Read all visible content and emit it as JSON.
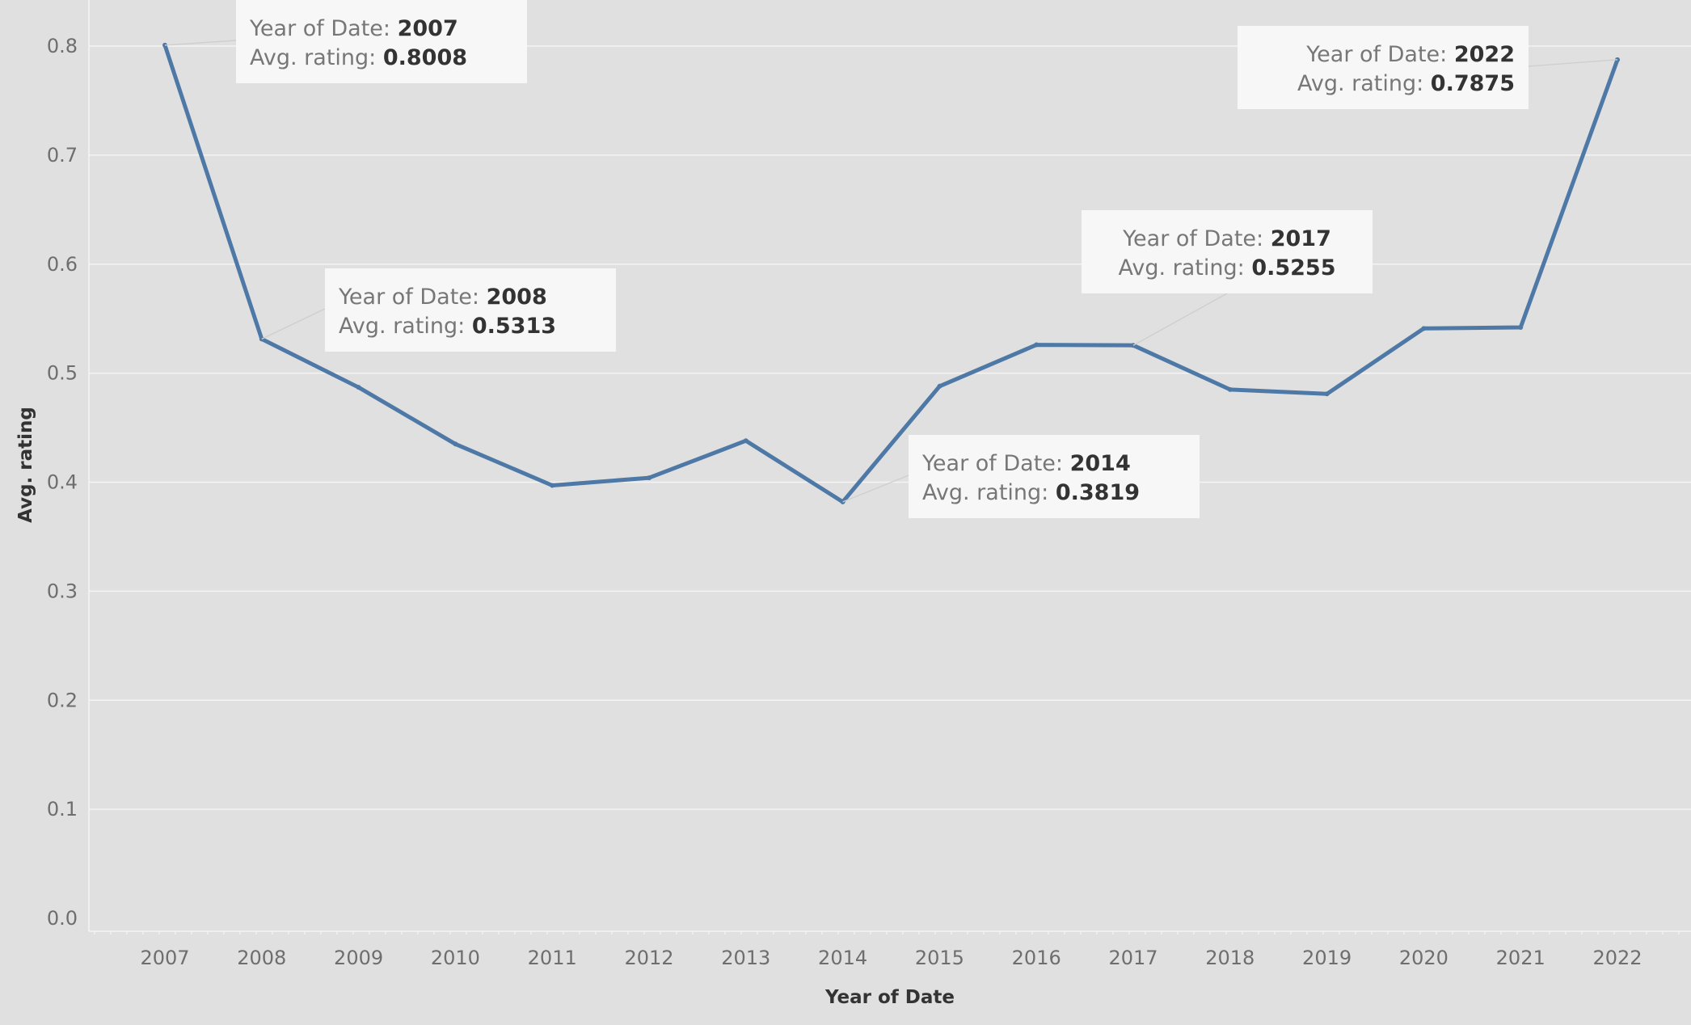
{
  "chart_data": {
    "type": "line",
    "xlabel": "Year of Date",
    "ylabel": "Avg. rating",
    "ylim": [
      0,
      0.8
    ],
    "yticks": [
      "0.0",
      "0.1",
      "0.2",
      "0.3",
      "0.4",
      "0.5",
      "0.6",
      "0.7",
      "0.8"
    ],
    "grid": true,
    "series": [
      {
        "color": "#4e79a7",
        "x": [
          "2007",
          "2008",
          "2009",
          "2010",
          "2011",
          "2012",
          "2013",
          "2014",
          "2015",
          "2016",
          "2017",
          "2018",
          "2019",
          "2020",
          "2021",
          "2022"
        ],
        "values": [
          0.8008,
          0.5313,
          0.487,
          0.435,
          0.397,
          0.404,
          0.438,
          0.3819,
          0.488,
          0.526,
          0.5255,
          0.485,
          0.481,
          0.541,
          0.542,
          0.7875
        ]
      }
    ],
    "annotations": [
      {
        "year_label": "Year of Date",
        "year_sep": ": ",
        "year": "2007",
        "value_label": "Avg. rating",
        "value_sep": ": ",
        "value": "0.8008",
        "align": "left"
      },
      {
        "year_label": "Year of Date",
        "year_sep": ": ",
        "year": "2008",
        "value_label": "Avg. rating",
        "value_sep": ": ",
        "value": "0.5313",
        "align": "left"
      },
      {
        "year_label": "Year of Date",
        "year_sep": ": ",
        "year": "2014",
        "value_label": "Avg. rating",
        "value_sep": ": ",
        "value": "0.3819",
        "align": "left"
      },
      {
        "year_label": "Year of Date",
        "year_sep": ": ",
        "year": "2017",
        "value_label": "Avg. rating",
        "value_sep": ": ",
        "value": "0.5255",
        "align": "center"
      },
      {
        "year_label": "Year of Date",
        "year_sep": ": ",
        "year": "2022",
        "value_label": "Avg. rating",
        "value_sep": ": ",
        "value": "0.7875",
        "align": "right"
      }
    ]
  }
}
